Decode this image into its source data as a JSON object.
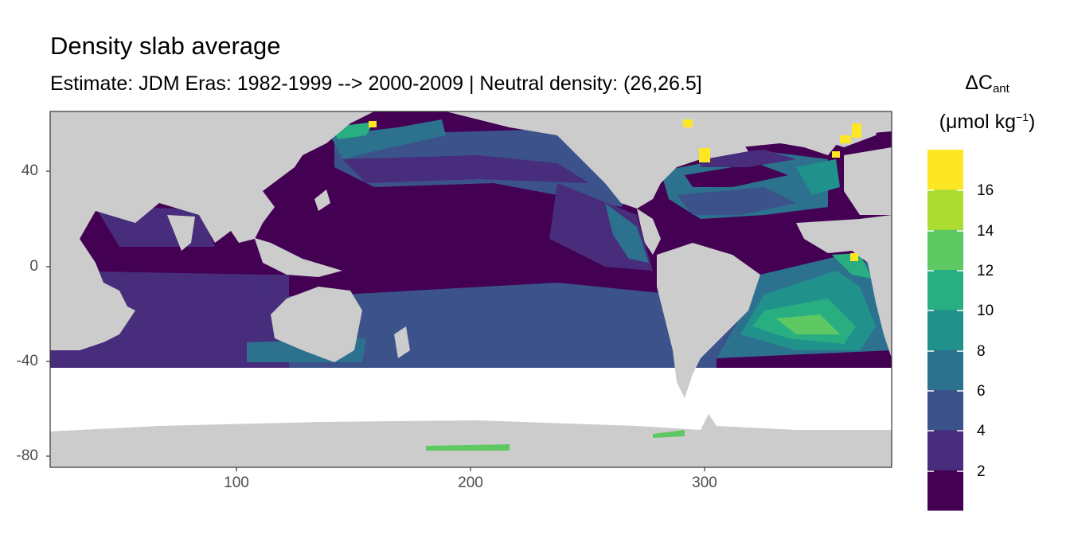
{
  "title": "Density slab average",
  "subtitle": "Estimate: JDM Eras: 1982-1999 --> 2000-2009 | Neutral density: (26,26.5]",
  "legend": {
    "title_main": "ΔC",
    "title_sub": "ant",
    "unit_pre": "(μmol kg",
    "unit_sup": "−1",
    "unit_post": ")",
    "labels": [
      "16",
      "14",
      "12",
      "10",
      "8",
      "6",
      "4",
      "2"
    ],
    "colors": [
      "#fde725",
      "#addc30",
      "#5ec962",
      "#28ae80",
      "#21918c",
      "#2c728e",
      "#3b528b",
      "#472d7b",
      "#440154"
    ]
  },
  "axes": {
    "x_ticks": [
      "100",
      "200",
      "300"
    ],
    "y_ticks": [
      "40",
      "0",
      "-40",
      "-80"
    ],
    "xlim": [
      20,
      380
    ],
    "ylim": [
      -85,
      65
    ]
  },
  "chart_data": {
    "type": "heatmap",
    "title": "Density slab average",
    "subtitle": "Estimate: JDM Eras: 1982-1999 --> 2000-2009 | Neutral density: (26,26.5]",
    "x_ticks": [
      100,
      200,
      300
    ],
    "y_ticks": [
      40,
      0,
      -40,
      -80
    ],
    "xlim": [
      20,
      380
    ],
    "ylim": [
      -85,
      65
    ],
    "grid": true,
    "legend_position": "right",
    "colorbar_breaks": [
      2,
      4,
      6,
      8,
      10,
      12,
      14,
      16
    ],
    "land_color": "#cccccc",
    "no_data_color": "#ffffff"
  }
}
